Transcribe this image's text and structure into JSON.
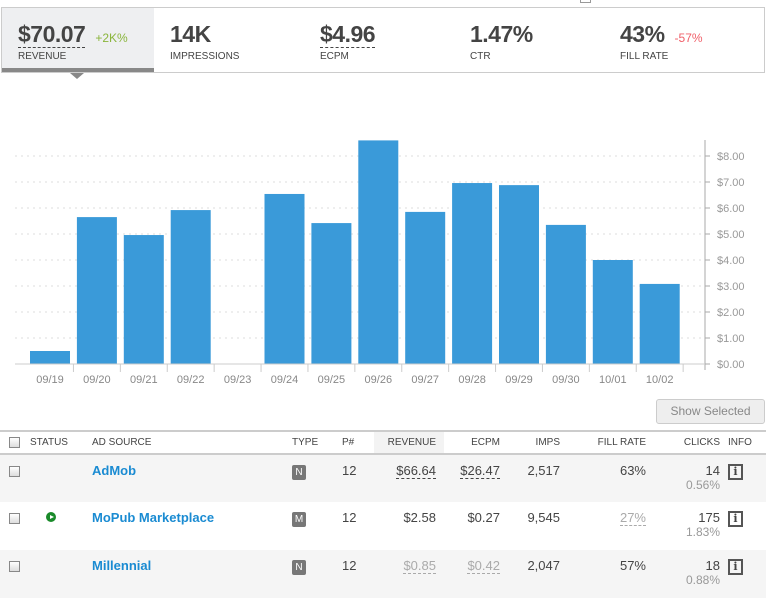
{
  "stats": [
    {
      "value": "$70.07",
      "change": "+2K%",
      "change_color": "#8ab53c",
      "label": "REVENUE"
    },
    {
      "value": "14K",
      "change": "",
      "label": "IMPRESSIONS"
    },
    {
      "value": "$4.96",
      "change": "",
      "label": "ECPM"
    },
    {
      "value": "1.47%",
      "change": "",
      "label": "CTR"
    },
    {
      "value": "43%",
      "change": "-57%",
      "change_color": "#f0606a",
      "label": "FILL RATE"
    }
  ],
  "chart_data": {
    "type": "bar",
    "categories": [
      "09/19",
      "09/20",
      "09/21",
      "09/22",
      "09/23",
      "09/24",
      "09/25",
      "09/26",
      "09/27",
      "09/28",
      "09/29",
      "09/30",
      "10/01",
      "10/02"
    ],
    "values": [
      0.5,
      5.65,
      4.96,
      5.92,
      0,
      6.54,
      5.42,
      8.6,
      5.85,
      6.96,
      6.88,
      5.35,
      4.0,
      3.08
    ],
    "yticks": [
      "$0.00",
      "$1.00",
      "$2.00",
      "$3.00",
      "$4.00",
      "$5.00",
      "$6.00",
      "$7.00",
      "$8.00"
    ],
    "ylim": [
      0,
      8.6
    ],
    "y_axis_side": "right",
    "grid": true,
    "bar_color": "#3a9ad9"
  },
  "show_selected": "Show Selected",
  "table": {
    "headers": [
      "STATUS",
      "AD SOURCE",
      "TYPE",
      "P#",
      "REVENUE",
      "ECPM",
      "IMPS",
      "FILL RATE",
      "CLICKS",
      "INFO"
    ],
    "rows": [
      {
        "source": "AdMob",
        "type": "N",
        "priority": "12",
        "revenue": "$66.64",
        "ecpm": "$26.47",
        "imps": "2,517",
        "fill": "63%",
        "clicks": "14",
        "ctr": "0.56%",
        "status": ""
      },
      {
        "source": "MoPub Marketplace",
        "type": "M",
        "priority": "12",
        "revenue": "$2.58",
        "ecpm": "$0.27",
        "imps": "9,545",
        "fill": "27%",
        "clicks": "175",
        "ctr": "1.83%",
        "status": "play"
      },
      {
        "source": "Millennial",
        "type": "N",
        "priority": "12",
        "revenue": "$0.85",
        "ecpm": "$0.42",
        "imps": "2,047",
        "fill": "57%",
        "clicks": "18",
        "ctr": "0.88%",
        "status": ""
      }
    ]
  }
}
